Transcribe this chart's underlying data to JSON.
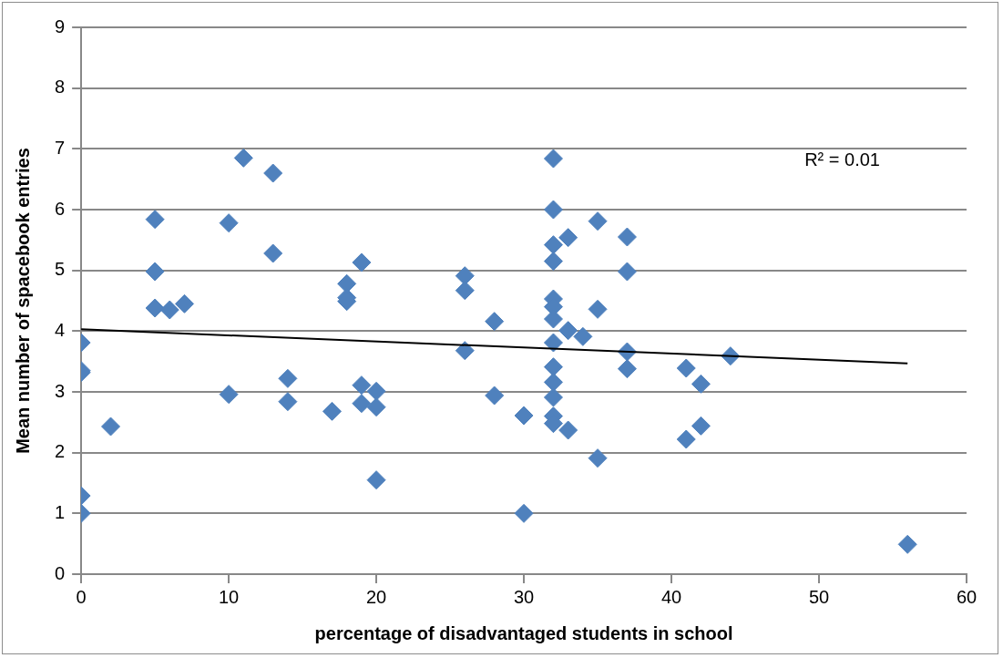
{
  "chart_data": {
    "type": "scatter",
    "xlabel": "percentage of disadvantaged students in school",
    "ylabel": "Mean number of spacebook entries",
    "series": [
      {
        "color": "#4f81bd",
        "marker": "diamond",
        "x": [
          0,
          0,
          0,
          0,
          0,
          2,
          5,
          5,
          5,
          6,
          7,
          10,
          10,
          11,
          13,
          13,
          14,
          14,
          17,
          18,
          18,
          18,
          19,
          19,
          19,
          20,
          20,
          20,
          26,
          26,
          26,
          28,
          28,
          30,
          30,
          32,
          32,
          32,
          32,
          32,
          32,
          32,
          32,
          32,
          32,
          32,
          32,
          32,
          33,
          33,
          33,
          34,
          35,
          35,
          35,
          37,
          37,
          37,
          37,
          41,
          41,
          42,
          42,
          44,
          56
        ],
        "values": [
          3.81,
          3.35,
          3.32,
          1.29,
          1.0,
          2.43,
          5.84,
          4.98,
          4.38,
          4.35,
          4.45,
          5.78,
          2.96,
          6.85,
          6.6,
          5.28,
          3.22,
          2.84,
          2.68,
          4.78,
          4.55,
          4.49,
          5.13,
          3.11,
          2.81,
          3.01,
          2.75,
          1.55,
          4.91,
          4.67,
          3.68,
          4.16,
          2.94,
          2.61,
          1.0,
          6.84,
          6.0,
          5.42,
          5.15,
          4.53,
          4.4,
          4.2,
          3.81,
          3.41,
          3.16,
          2.91,
          2.6,
          2.48,
          5.54,
          4.01,
          2.37,
          3.91,
          5.81,
          4.36,
          1.91,
          5.55,
          4.98,
          3.66,
          3.38,
          3.39,
          2.22,
          3.13,
          2.44,
          3.59,
          0.49
        ]
      },
      {
        "type": "line",
        "color": "#000000",
        "marker": "none",
        "x": [
          0,
          56
        ],
        "values": [
          4.03,
          3.47
        ]
      }
    ],
    "xlim": [
      0,
      60
    ],
    "xticks": [
      0,
      10,
      20,
      30,
      40,
      50,
      60
    ],
    "ylim": [
      0,
      9
    ],
    "yticks": [
      0,
      1,
      2,
      3,
      4,
      5,
      6,
      7,
      8,
      9
    ],
    "grid": "y",
    "legend": false,
    "annotations": [
      "R² = 0.01"
    ]
  }
}
